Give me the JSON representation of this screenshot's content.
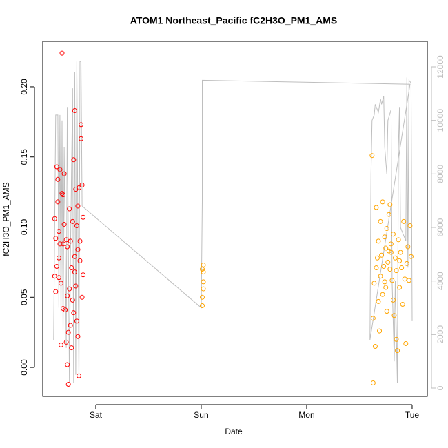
{
  "chart_data": {
    "type": "scatter",
    "title": "ATOM1 Northeast_Pacific fC2H3O_PM1_AMS",
    "x_label": "Date",
    "y_label": "fC2H3O_PM1_AMS",
    "xlim": [
      -0.503,
      3.144
    ],
    "xticks": [
      {
        "value": 0,
        "label": "Sat"
      },
      {
        "value": 1,
        "label": "Sun"
      },
      {
        "value": 2,
        "label": "Mon"
      },
      {
        "value": 3,
        "label": "Tue"
      }
    ],
    "ylim": [
      -0.0206,
      0.2324
    ],
    "yticks": [
      {
        "value": 0,
        "label": "0.00"
      },
      0.05,
      {
        "value": 0.1,
        "label": "0.10"
      },
      0.15,
      {
        "value": 0.2,
        "label": "0.20"
      }
    ],
    "y2lim": [
      -309,
      12953
    ],
    "y2ticks": [
      0,
      2000,
      4000,
      6000,
      8000,
      10000,
      12000
    ],
    "y2_color": "#bebebe",
    "series": [
      {
        "color": "#bebebe",
        "axis": "y2",
        "x": [
          -0.4,
          -0.38,
          -0.36,
          -0.35,
          -0.34,
          -0.33,
          -0.32,
          -0.31,
          -0.3,
          -0.28,
          -0.27,
          -0.25,
          -0.24,
          -0.22,
          -0.21,
          -0.2,
          -0.19,
          -0.18,
          -0.16,
          -0.15,
          -0.14,
          -0.13,
          1.0,
          1.01,
          1.01,
          2.98,
          2.6,
          2.61,
          2.62,
          2.64,
          2.65,
          2.68,
          2.7,
          2.71,
          2.73,
          2.74,
          2.76,
          2.77,
          2.8,
          2.81,
          2.83,
          2.84,
          2.86,
          2.87,
          2.88,
          2.89,
          2.94,
          2.95,
          2.96,
          2.97,
          2.99,
          3.0
        ],
        "values": [
          1800,
          10200,
          10200,
          3000,
          10200,
          2500,
          10000,
          2000,
          9000,
          1500,
          10500,
          200,
          5000,
          11200,
          200,
          11800,
          500,
          12200,
          300,
          12200,
          12200,
          6800,
          3000,
          7000,
          11500,
          11350,
          1800,
          8000,
          10000,
          10200,
          10600,
          10300,
          10800,
          10600,
          10900,
          9000,
          8000,
          10000,
          10400,
          4000,
          1000,
          4000,
          200,
          9000,
          10500,
          6000,
          5500,
          11600,
          4500,
          11500,
          11400,
          2500
        ]
      },
      {
        "color": "#ff0000",
        "x": [
          -0.39,
          -0.39,
          -0.38,
          -0.38,
          -0.37,
          -0.37,
          -0.36,
          -0.36,
          -0.35,
          -0.35,
          -0.34,
          -0.34,
          -0.33,
          -0.33,
          -0.32,
          -0.32,
          -0.31,
          -0.31,
          -0.3,
          -0.3,
          -0.29,
          -0.28,
          -0.28,
          -0.27,
          -0.27,
          -0.26,
          -0.26,
          -0.25,
          -0.25,
          -0.24,
          -0.23,
          -0.23,
          -0.22,
          -0.22,
          -0.21,
          -0.21,
          -0.2,
          -0.2,
          -0.19,
          -0.19,
          -0.18,
          -0.18,
          -0.17,
          -0.17,
          -0.16,
          -0.16,
          -0.15,
          -0.15,
          -0.14,
          -0.14,
          -0.13,
          -0.13,
          -0.12,
          -0.12,
          -0.27,
          -0.24,
          -0.31,
          -0.35,
          -0.2,
          -0.17
        ],
        "values": [
          0.106,
          0.065,
          0.054,
          0.092,
          0.072,
          0.143,
          0.134,
          0.118,
          0.097,
          0.064,
          0.141,
          0.088,
          0.06,
          0.016,
          0.224,
          0.124,
          0.042,
          0.088,
          0.102,
          0.138,
          0.041,
          0.018,
          0.091,
          0.002,
          0.086,
          0.025,
          -0.012,
          0.113,
          0.056,
          0.03,
          0.071,
          0.014,
          0.104,
          0.048,
          0.039,
          0.148,
          0.183,
          0.079,
          0.127,
          0.058,
          0.101,
          0.033,
          0.115,
          0.022,
          -0.006,
          0.128,
          0.09,
          0.076,
          0.173,
          0.163,
          0.13,
          0.05,
          0.107,
          0.066,
          0.051,
          0.09,
          0.123,
          0.078,
          0.068,
          0.084
        ]
      },
      {
        "color": "#ffa500",
        "x": [
          1.01,
          1.01,
          1.02,
          1.02,
          1.02,
          1.01,
          1.02,
          2.62,
          2.63,
          2.63,
          2.64,
          2.65,
          2.66,
          2.67,
          2.68,
          2.68,
          2.69,
          2.7,
          2.7,
          2.71,
          2.72,
          2.72,
          2.73,
          2.74,
          2.74,
          2.75,
          2.76,
          2.76,
          2.77,
          2.78,
          2.78,
          2.79,
          2.79,
          2.8,
          2.81,
          2.82,
          2.82,
          2.83,
          2.84,
          2.85,
          2.85,
          2.86,
          2.87,
          2.88,
          2.89,
          2.9,
          2.91,
          2.92,
          2.93,
          2.94,
          2.95,
          2.96,
          2.97,
          2.98,
          2.99,
          2.88,
          2.8,
          2.75,
          2.66
        ],
        "values": [
          0.044,
          0.05,
          0.068,
          0.061,
          0.073,
          0.07,
          0.056,
          0.151,
          0.035,
          -0.011,
          0.06,
          0.015,
          0.114,
          0.078,
          0.047,
          0.09,
          0.026,
          0.104,
          0.065,
          0.08,
          0.118,
          0.052,
          0.072,
          0.061,
          0.093,
          0.085,
          0.099,
          0.04,
          0.075,
          0.083,
          0.109,
          0.116,
          0.07,
          0.088,
          0.062,
          0.095,
          0.048,
          0.037,
          0.078,
          0.069,
          0.02,
          0.012,
          0.091,
          0.057,
          0.082,
          0.071,
          0.045,
          0.104,
          0.063,
          0.017,
          0.074,
          0.086,
          0.062,
          0.101,
          0.079,
          0.076,
          0.082,
          0.057,
          0.071
        ]
      }
    ]
  }
}
